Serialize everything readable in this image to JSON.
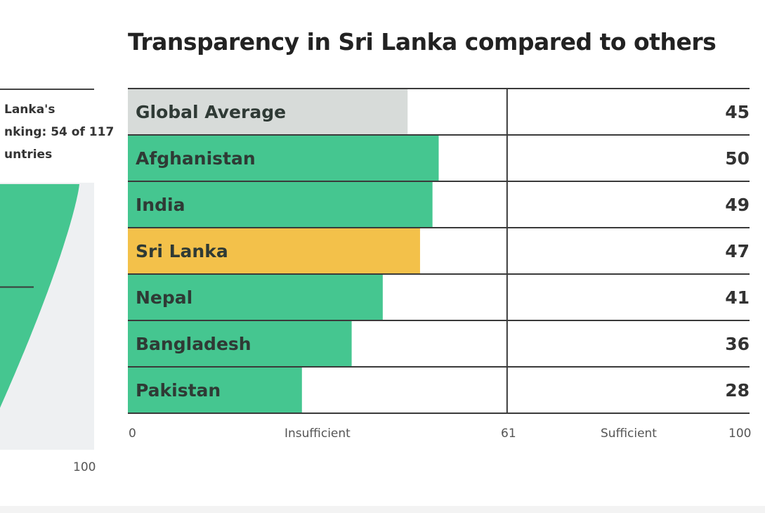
{
  "title": "Transparency in Sri Lanka compared to others",
  "ranking_box": {
    "lines": [
      "Lanka's",
      "nking: 54 of 117",
      "untries"
    ],
    "axis_max_label": "100"
  },
  "colors": {
    "green": "#45c690",
    "highlight": "#f3c14a",
    "reference": "#d7dbd9",
    "line": "#3a3a3a"
  },
  "chart_data": {
    "type": "bar",
    "orientation": "horizontal",
    "title": "Transparency in Sri Lanka compared to others",
    "categories": [
      "Global Average",
      "Afghanistan",
      "India",
      "Sri Lanka",
      "Nepal",
      "Bangladesh",
      "Pakistan"
    ],
    "values": [
      45,
      50,
      49,
      47,
      41,
      36,
      28
    ],
    "bar_styles": [
      "reference",
      "green",
      "green",
      "highlight",
      "green",
      "green",
      "green"
    ],
    "xlim": [
      0,
      100
    ],
    "threshold": 61,
    "x_axis_labels": {
      "min": "0",
      "low_band": "Insufficient",
      "threshold": "61",
      "high_band": "Sufficient",
      "max": "100"
    },
    "left_ranking": {
      "rank": 54,
      "total": 117,
      "country": "Sri Lanka",
      "xlim": [
        0,
        100
      ]
    }
  }
}
